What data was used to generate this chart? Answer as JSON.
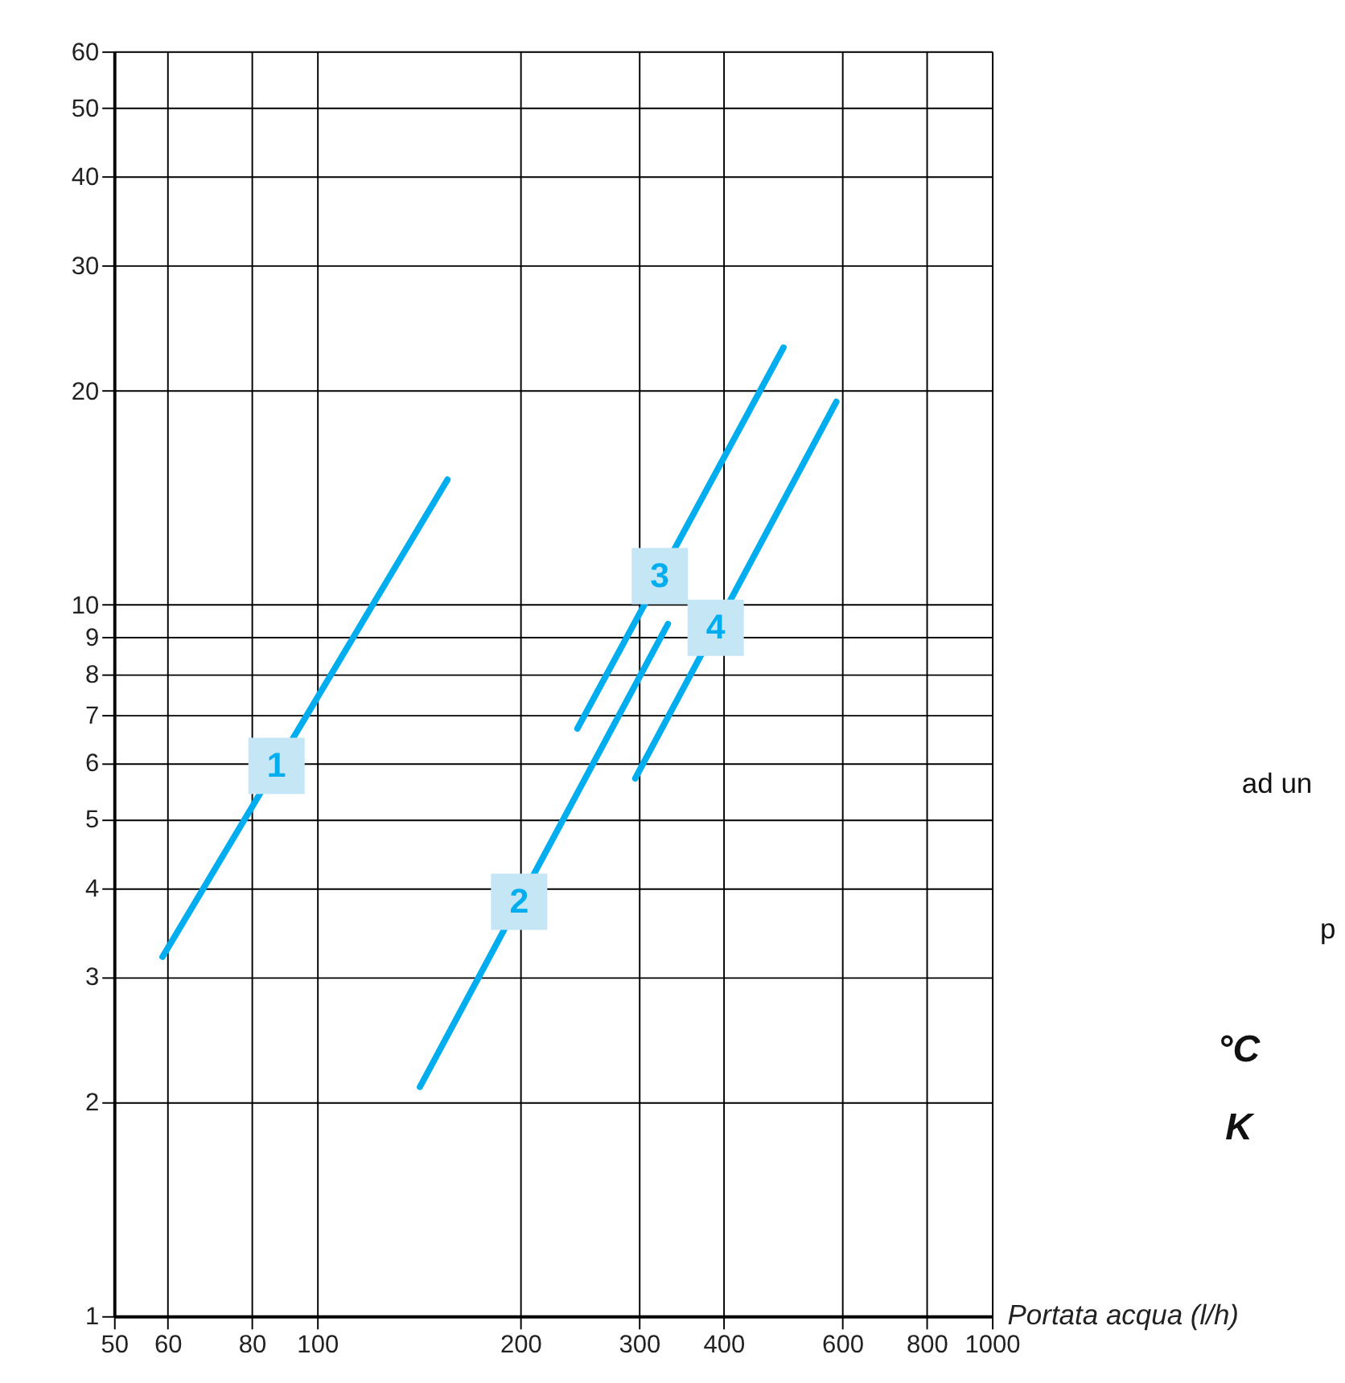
{
  "chart_data": {
    "type": "line",
    "xlabel": "Portata acqua (l/h)",
    "log": "xy",
    "grid": true,
    "legend": false,
    "line_style": "solid",
    "marker": "none",
    "xlim": [
      50,
      1000
    ],
    "xticks": [
      50,
      60,
      80,
      100,
      200,
      300,
      400,
      600,
      800,
      1000
    ],
    "ylim": [
      1,
      60
    ],
    "yticks": [
      1,
      2,
      3,
      4,
      5,
      6,
      7,
      8,
      9,
      10,
      20,
      30,
      40,
      50,
      60
    ],
    "series": [
      {
        "name": "1",
        "color": "#00aeef",
        "x": [
          59,
          156
        ],
        "values": [
          3.2,
          15
        ]
      },
      {
        "name": "2",
        "color": "#00aeef",
        "x": [
          142,
          331
        ],
        "values": [
          2.1,
          9.4
        ]
      },
      {
        "name": "3",
        "color": "#00aeef",
        "x": [
          243,
          491
        ],
        "values": [
          6.7,
          23
        ]
      },
      {
        "name": "4",
        "color": "#00aeef",
        "x": [
          296,
          588
        ],
        "values": [
          5.7,
          19.3
        ]
      }
    ],
    "annotations": [
      "ad un",
      "p",
      "°C",
      "K"
    ]
  }
}
